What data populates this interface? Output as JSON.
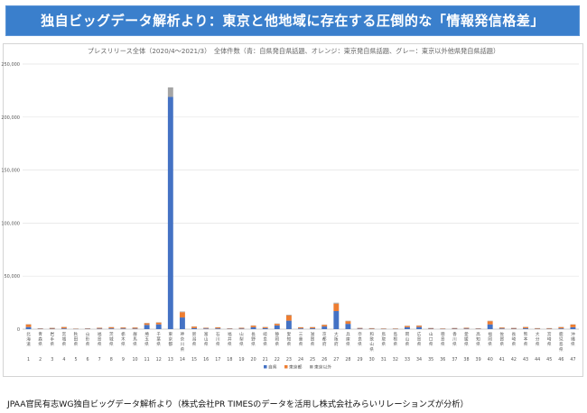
{
  "banner": {
    "title": "独自ビッグデータ解析より：東京と他地域に存在する圧倒的な「情報発信格差」"
  },
  "chart_title": "プレスリリース全体（2020/4～2021/3）　全体件数（青：自県発自県話題、オレンジ：東京発自県話題、グレー：東京以外他県発自県話題）",
  "footer": "JPAA官民有志WG独自ビッグデータ解析より（株式会社PR TIMESのデータを活用し株式会社みらいリレーションズが分析）",
  "colors": {
    "blue": "#4472c4",
    "orange": "#ed7d31",
    "gray": "#a5a5a5",
    "banner": "#3a7fcc"
  },
  "chart_data": {
    "type": "bar",
    "stacked": true,
    "ylim": [
      0,
      250000
    ],
    "yticks": [
      0,
      50000,
      100000,
      150000,
      200000,
      250000
    ],
    "ytick_labels": [
      "0",
      "50,000",
      "100,000",
      "150,000",
      "200,000",
      "250,000"
    ],
    "grid": true,
    "legend_position": "bottom",
    "categories": [
      "1",
      "2",
      "3",
      "4",
      "5",
      "6",
      "7",
      "8",
      "9",
      "10",
      "11",
      "12",
      "13",
      "14",
      "15",
      "16",
      "17",
      "18",
      "19",
      "20",
      "21",
      "22",
      "23",
      "24",
      "25",
      "26",
      "27",
      "28",
      "29",
      "30",
      "31",
      "32",
      "33",
      "34",
      "35",
      "36",
      "37",
      "38",
      "39",
      "40",
      "41",
      "42",
      "43",
      "44",
      "45",
      "46",
      "47"
    ],
    "prefectures": [
      "北海道",
      "青森県",
      "岩手県",
      "宮城県",
      "秋田県",
      "山形県",
      "福島県",
      "茨城県",
      "栃木県",
      "群馬県",
      "埼玉県",
      "千葉県",
      "東京都",
      "神奈川県",
      "新潟県",
      "富山県",
      "石川県",
      "福井県",
      "山梨県",
      "長野県",
      "岐阜県",
      "静岡県",
      "愛知県",
      "三重県",
      "滋賀県",
      "京都府",
      "大阪府",
      "兵庫県",
      "奈良県",
      "和歌山県",
      "鳥取県",
      "島根県",
      "岡山県",
      "広島県",
      "山口県",
      "徳島県",
      "香川県",
      "愛媛県",
      "高知県",
      "福岡県",
      "佐賀県",
      "長崎県",
      "熊本県",
      "大分県",
      "宮崎県",
      "鹿児島県",
      "沖縄県"
    ],
    "series": [
      {
        "name": "自県",
        "color": "#4472c4",
        "values": [
          2000,
          300,
          400,
          700,
          200,
          300,
          500,
          700,
          600,
          500,
          4000,
          4500,
          219000,
          11000,
          900,
          600,
          700,
          300,
          500,
          1800,
          900,
          3500,
          8000,
          700,
          800,
          2500,
          17000,
          5000,
          500,
          300,
          200,
          200,
          1800,
          2000,
          400,
          200,
          400,
          500,
          300,
          4500,
          600,
          400,
          800,
          300,
          300,
          700,
          1800
        ]
      },
      {
        "name": "東京都",
        "color": "#ed7d31",
        "values": [
          2500,
          500,
          800,
          1300,
          300,
          500,
          800,
          1100,
          1000,
          1000,
          1500,
          1700,
          0,
          5000,
          1500,
          700,
          1000,
          500,
          800,
          1500,
          1000,
          1500,
          5000,
          1000,
          1000,
          1500,
          7000,
          2500,
          700,
          600,
          400,
          400,
          1200,
          1300,
          600,
          400,
          600,
          800,
          500,
          3000,
          900,
          700,
          1200,
          600,
          600,
          1200,
          2500
        ]
      },
      {
        "name": "東京以外",
        "color": "#a5a5a5",
        "values": [
          200,
          50,
          80,
          150,
          30,
          50,
          80,
          120,
          100,
          100,
          300,
          300,
          9000,
          600,
          150,
          80,
          120,
          40,
          80,
          200,
          150,
          300,
          600,
          150,
          150,
          300,
          900,
          400,
          80,
          50,
          30,
          30,
          150,
          200,
          60,
          40,
          60,
          80,
          40,
          400,
          100,
          70,
          150,
          60,
          60,
          120,
          200
        ]
      }
    ]
  }
}
